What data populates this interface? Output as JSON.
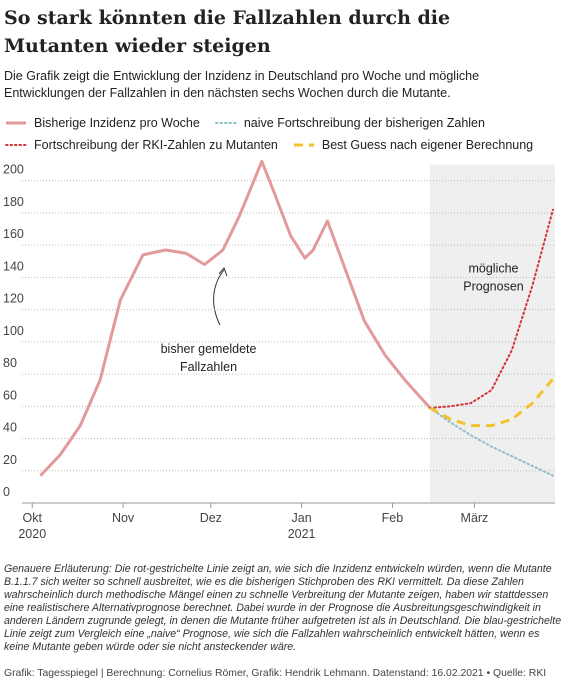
{
  "chart_data": {
    "type": "line",
    "title": "So stark könnten die Fallzahlen durch die Mutanten wieder steigen",
    "subtitle": "Die Grafik zeigt die Entwicklung der Inzidenz in Deutschland pro Woche und mögliche Entwicklungen der Fallzahlen in den nächsten sechs Wochen durch die Mutante.",
    "series": [
      {
        "name": "Bisherige Inzidenz pro Woche",
        "color": "#e39a9c",
        "style": "solid",
        "x": [
          0.4,
          1.37,
          2.34,
          3.3,
          4.3,
          5.4,
          6.5,
          7.5,
          8.4,
          9.3,
          10.1,
          11.2,
          11.85,
          12.6,
          13.3,
          13.7,
          14.4,
          15.3,
          16.2,
          17.2,
          18.2,
          19.4
        ],
        "values": [
          17,
          30,
          48,
          76,
          126,
          154,
          157,
          155,
          148,
          157,
          178,
          212,
          191,
          166,
          152,
          157,
          175,
          144,
          113,
          92,
          76,
          59
        ]
      },
      {
        "name": "naive Fortschreibung der bisherigen Zahlen",
        "color": "#8dbfc6",
        "style": "dotted",
        "x": [
          19.4,
          20.4,
          21.4,
          22.4,
          23.4,
          24.4,
          25.4
        ],
        "values": [
          59,
          50,
          42,
          35,
          29,
          23,
          17
        ]
      },
      {
        "name": "Fortschreibung der RKI-Zahlen zu Mutanten",
        "color": "#d2343a",
        "style": "dotted",
        "x": [
          19.4,
          20.4,
          21.4,
          22.4,
          23.4,
          24.4,
          25.4
        ],
        "values": [
          59,
          60,
          62,
          70,
          95,
          135,
          182
        ]
      },
      {
        "name": "Best Guess nach eigener Berechnung",
        "color": "#f3c22f",
        "style": "dashed",
        "x": [
          19.4,
          20.4,
          21.4,
          22.4,
          23.4,
          24.4,
          25.4
        ],
        "values": [
          59,
          52,
          48,
          48,
          52,
          62,
          77
        ]
      }
    ],
    "xlim": [
      -0.5,
      25.5
    ],
    "ylim": [
      0,
      210
    ],
    "yticks": [
      0,
      20,
      40,
      60,
      80,
      100,
      120,
      140,
      160,
      180,
      200
    ],
    "xticks": [
      {
        "value": 0,
        "label": "Okt"
      },
      {
        "value": 4.43,
        "label": "Nov"
      },
      {
        "value": 8.71,
        "label": "Dez"
      },
      {
        "value": 13.14,
        "label": "Jan"
      },
      {
        "value": 17.57,
        "label": "Feb"
      },
      {
        "value": 21.57,
        "label": "März"
      }
    ],
    "year_labels": [
      {
        "value": 0,
        "label": "2020"
      },
      {
        "value": 13.14,
        "label": "2021"
      }
    ],
    "forecast_region": [
      19.4,
      25.5
    ],
    "grid": true,
    "annotations": [
      {
        "lines": [
          "bisher gemeldete",
          "Fallzahlen"
        ],
        "x": 8.6,
        "y": 93
      },
      {
        "lines": [
          "mögliche",
          "Prognosen"
        ],
        "x": 22.5,
        "y": 143
      }
    ],
    "footnote": "Genauere Erläuterung: Die rot-gestrichelte Linie zeigt an, wie sich die Inzidenz entwickeln würden, wenn die Mutante B.1.1.7 sich weiter so schnell ausbreitet, wie es die bisherigen Stichproben des RKI vermittelt. Da diese Zahlen wahrscheinlich durch methodische Mängel einen zu schnelle Verbreitung der Mutante zeigen, haben wir stattdessen eine realistischere Alternativprognose berechnet. Dabei wurde in der Prognose die Ausbreitungsgeschwindigkeit in anderen Ländern zugrunde gelegt, in denen die Mutante früher aufgetreten ist als in Deutschland. Die blau-gestrichelte Linie zeigt zum Vergleich eine „naive“ Prognose, wie sich die Fallzahlen wahrscheinlich entwickelt hätten, wenn es keine Mutante geben würde oder sie nicht ansteckender wäre.",
    "source": "Grafik: Tagesspiegel | Berechnung: Cornelius Römer, Grafik: Hendrik Lehmann. Datenstand: 16.02.2021 • Quelle: RKI"
  }
}
